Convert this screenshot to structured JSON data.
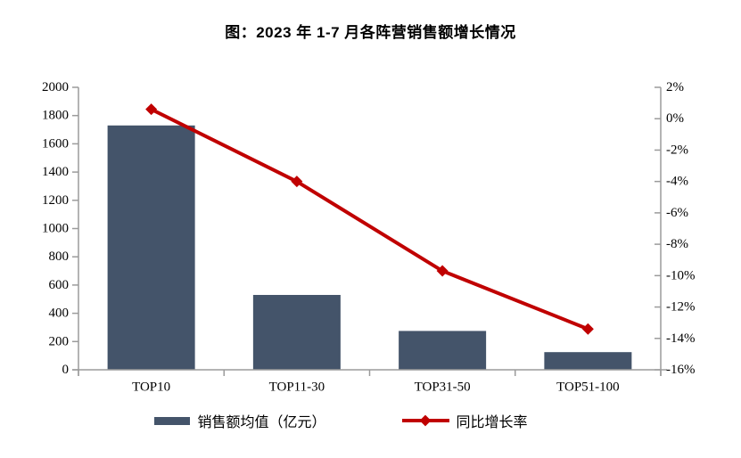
{
  "chart_data": {
    "type": "combo_bar_line",
    "title": "图：2023 年 1-7 月各阵营销售额增长情况",
    "categories": [
      "TOP10",
      "TOP11-30",
      "TOP31-50",
      "TOP51-100"
    ],
    "series": [
      {
        "name": "销售额均值（亿元）",
        "type": "bar",
        "axis": "left",
        "values": [
          1730,
          530,
          275,
          125
        ],
        "color": "#44546A"
      },
      {
        "name": "同比增长率",
        "type": "line",
        "axis": "right",
        "values": [
          0.6,
          -4.0,
          -9.7,
          -13.4
        ],
        "color": "#C00000",
        "marker": "diamond"
      }
    ],
    "left_axis": {
      "max": 2000,
      "min": 0,
      "step": 200,
      "tick_labels": [
        "2000",
        "1800",
        "1600",
        "1400",
        "1200",
        "1000",
        "800",
        "600",
        "400",
        "200",
        "0"
      ]
    },
    "right_axis": {
      "max": 2,
      "min": -16,
      "step": 2,
      "suffix": "%",
      "tick_labels": [
        "2%",
        "0%",
        "-2%",
        "-4%",
        "-6%",
        "-8%",
        "-10%",
        "-12%",
        "-14%",
        "-16%"
      ]
    },
    "grid": false,
    "legend_position": "bottom",
    "axis_color": "#9B9B9B",
    "text_color": "#000000"
  }
}
